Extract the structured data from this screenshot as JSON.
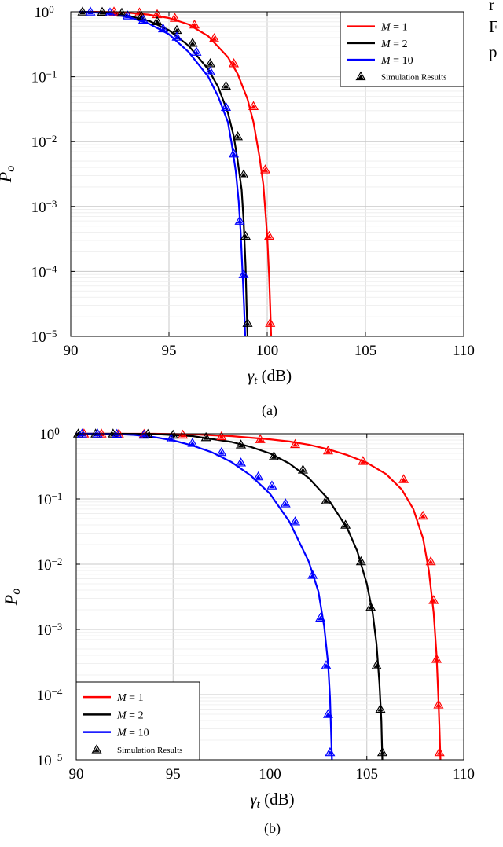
{
  "corner_text": [
    "r",
    "F",
    "p"
  ],
  "chart_data": [
    {
      "type": "line",
      "caption": "(a)",
      "xlabel": "γ_t (dB)",
      "ylabel": "P_o",
      "xlim": [
        90,
        110
      ],
      "ylim": [
        1e-05,
        1
      ],
      "yscale": "log",
      "xticks": [
        90,
        95,
        100,
        105,
        110
      ],
      "yticks": [
        {
          "base": "10",
          "exp": "0"
        },
        {
          "base": "10",
          "exp": "−1"
        },
        {
          "base": "10",
          "exp": "−2"
        },
        {
          "base": "10",
          "exp": "−3"
        },
        {
          "base": "10",
          "exp": "−4"
        },
        {
          "base": "10",
          "exp": "−5"
        }
      ],
      "grid": true,
      "legend_position": "top-right",
      "series": [
        {
          "name": "M = 1",
          "color": "#ff0000",
          "x": [
            91.0,
            92.0,
            93.0,
            94.0,
            95.0,
            96.0,
            97.0,
            98.0,
            98.5,
            99.0,
            99.3,
            99.6,
            99.8,
            99.9,
            100.0,
            100.1,
            100.15,
            100.2
          ],
          "y": [
            1.0,
            0.99,
            0.96,
            0.9,
            0.8,
            0.64,
            0.42,
            0.2,
            0.11,
            0.045,
            0.02,
            0.006,
            0.0022,
            0.0009,
            0.00035,
            8e-05,
            3e-05,
            1e-05
          ]
        },
        {
          "name": "M = 2",
          "color": "#000000",
          "x": [
            90.4,
            91.0,
            92.0,
            93.0,
            94.0,
            95.0,
            96.0,
            97.0,
            97.5,
            98.0,
            98.3,
            98.5,
            98.7,
            98.8,
            98.9,
            98.95,
            99.0
          ],
          "y": [
            1.0,
            0.99,
            0.95,
            0.86,
            0.72,
            0.52,
            0.3,
            0.13,
            0.07,
            0.028,
            0.012,
            0.005,
            0.0018,
            0.0006,
            0.00012,
            3e-05,
            1e-05
          ]
        },
        {
          "name": "M = 10",
          "color": "#0000ff",
          "x": [
            90.4,
            91.0,
            92.0,
            93.0,
            94.0,
            95.0,
            96.0,
            97.0,
            97.5,
            98.0,
            98.2,
            98.4,
            98.55,
            98.65,
            98.75,
            98.82,
            98.88
          ],
          "y": [
            1.0,
            0.99,
            0.93,
            0.82,
            0.65,
            0.45,
            0.24,
            0.1,
            0.05,
            0.02,
            0.009,
            0.0035,
            0.0012,
            0.0004,
            9e-05,
            3e-05,
            1e-05
          ]
        }
      ],
      "markers": [
        {
          "series": 0,
          "x": [
            92.2,
            93.5,
            94.4,
            95.3,
            96.3,
            97.3,
            98.3,
            99.3,
            99.9,
            100.1,
            100.15
          ],
          "y": [
            1.0,
            0.97,
            0.91,
            0.8,
            0.63,
            0.39,
            0.16,
            0.035,
            0.0037,
            0.00035,
            1.6e-05
          ]
        },
        {
          "series": 1,
          "x": [
            90.6,
            91.6,
            92.6,
            93.6,
            94.4,
            95.4,
            96.2,
            97.1,
            97.9,
            98.5,
            98.8,
            98.9,
            99.0
          ],
          "y": [
            1.0,
            0.99,
            0.96,
            0.86,
            0.71,
            0.52,
            0.33,
            0.16,
            0.072,
            0.012,
            0.0031,
            0.00035,
            1.6e-05
          ]
        },
        {
          "series": 2,
          "x": [
            91.0,
            92.0,
            92.9,
            93.7,
            94.7,
            95.4,
            96.4,
            97.1,
            97.9,
            98.3,
            98.6,
            98.8
          ],
          "y": [
            1.0,
            0.97,
            0.87,
            0.75,
            0.55,
            0.41,
            0.24,
            0.12,
            0.034,
            0.0065,
            0.0006,
            9e-05
          ]
        }
      ],
      "legend": [
        {
          "label": "M = 1",
          "kind": "line",
          "color": "#ff0000"
        },
        {
          "label": "M = 2",
          "kind": "line",
          "color": "#000000"
        },
        {
          "label": "M = 10",
          "kind": "line",
          "color": "#0000ff"
        },
        {
          "label": "Simulation Results",
          "kind": "marker",
          "color": "#000000"
        }
      ]
    },
    {
      "type": "line",
      "caption": "(b)",
      "xlabel": "γ_t (dB)",
      "ylabel": "P_o",
      "xlim": [
        90,
        110
      ],
      "ylim": [
        1e-05,
        1
      ],
      "yscale": "log",
      "xticks": [
        90,
        95,
        100,
        105,
        110
      ],
      "yticks": [
        {
          "base": "10",
          "exp": "0"
        },
        {
          "base": "10",
          "exp": "−1"
        },
        {
          "base": "10",
          "exp": "−2"
        },
        {
          "base": "10",
          "exp": "−3"
        },
        {
          "base": "10",
          "exp": "−4"
        },
        {
          "base": "10",
          "exp": "−5"
        }
      ],
      "grid": true,
      "legend_position": "bottom-left",
      "series": [
        {
          "name": "M = 1",
          "color": "#ff0000",
          "x": [
            90.0,
            92.0,
            94.0,
            96.0,
            98.0,
            100.0,
            101.0,
            102.0,
            103.0,
            104.0,
            105.0,
            106.0,
            106.8,
            107.4,
            107.9,
            108.2,
            108.45,
            108.6,
            108.7,
            108.75,
            108.8
          ],
          "y": [
            1.0,
            1.0,
            1.0,
            0.98,
            0.92,
            0.82,
            0.76,
            0.68,
            0.58,
            0.47,
            0.36,
            0.24,
            0.14,
            0.07,
            0.025,
            0.008,
            0.0018,
            0.0004,
            8e-05,
            3e-05,
            1e-05
          ]
        },
        {
          "name": "M = 2",
          "color": "#000000",
          "x": [
            90.0,
            92.0,
            94.0,
            96.0,
            98.0,
            99.0,
            100.0,
            101.0,
            102.0,
            103.0,
            104.0,
            104.5,
            105.0,
            105.3,
            105.5,
            105.65,
            105.75,
            105.8
          ],
          "y": [
            1.0,
            1.0,
            0.99,
            0.92,
            0.75,
            0.63,
            0.5,
            0.35,
            0.21,
            0.1,
            0.035,
            0.016,
            0.005,
            0.0018,
            0.0006,
            0.00015,
            4e-05,
            1e-05
          ]
        },
        {
          "name": "M = 10",
          "color": "#0000ff",
          "x": [
            90.0,
            91.0,
            92.0,
            93.0,
            94.0,
            95.0,
            96.0,
            97.0,
            98.0,
            99.0,
            100.0,
            101.0,
            102.0,
            102.5,
            102.8,
            103.0,
            103.1,
            103.15,
            103.2
          ],
          "y": [
            1.0,
            1.0,
            0.99,
            0.96,
            0.89,
            0.79,
            0.66,
            0.52,
            0.37,
            0.23,
            0.12,
            0.045,
            0.011,
            0.0038,
            0.0011,
            0.0003,
            9e-05,
            3e-05,
            1e-05
          ]
        }
      ],
      "markers": [
        {
          "series": 0,
          "x": [
            90.4,
            91.3,
            92.2,
            93.5,
            95.5,
            97.5,
            99.5,
            101.3,
            103.0,
            104.8,
            106.9,
            107.9,
            108.3,
            108.45,
            108.6,
            108.7,
            108.75
          ],
          "y": [
            1.0,
            1.0,
            1.0,
            0.99,
            0.96,
            0.91,
            0.82,
            0.69,
            0.55,
            0.38,
            0.2,
            0.055,
            0.011,
            0.0028,
            0.00035,
            7e-05,
            1.3e-05
          ]
        },
        {
          "series": 1,
          "x": [
            90.1,
            91.0,
            91.9,
            93.7,
            95.0,
            96.7,
            98.5,
            100.2,
            101.7,
            102.9,
            103.9,
            104.7,
            105.2,
            105.5,
            105.7,
            105.8
          ],
          "y": [
            1.0,
            1.0,
            1.0,
            0.99,
            0.96,
            0.88,
            0.68,
            0.45,
            0.28,
            0.095,
            0.04,
            0.011,
            0.0022,
            0.00028,
            6e-05,
            1.3e-05
          ]
        },
        {
          "series": 2,
          "x": [
            90.3,
            91.1,
            92.1,
            93.5,
            94.9,
            96.0,
            97.5,
            98.5,
            99.4,
            100.1,
            100.8,
            101.3,
            102.2,
            102.6,
            102.9,
            103.0,
            103.1
          ],
          "y": [
            1.0,
            1.0,
            0.99,
            0.96,
            0.84,
            0.72,
            0.52,
            0.36,
            0.22,
            0.16,
            0.085,
            0.045,
            0.0068,
            0.0015,
            0.00028,
            5e-05,
            1.3e-05
          ]
        }
      ],
      "legend": [
        {
          "label": "M = 1",
          "kind": "line",
          "color": "#ff0000"
        },
        {
          "label": "M = 2",
          "kind": "line",
          "color": "#000000"
        },
        {
          "label": "M = 10",
          "kind": "line",
          "color": "#0000ff"
        },
        {
          "label": "Simulation Results",
          "kind": "marker",
          "color": "#000000"
        }
      ]
    }
  ]
}
